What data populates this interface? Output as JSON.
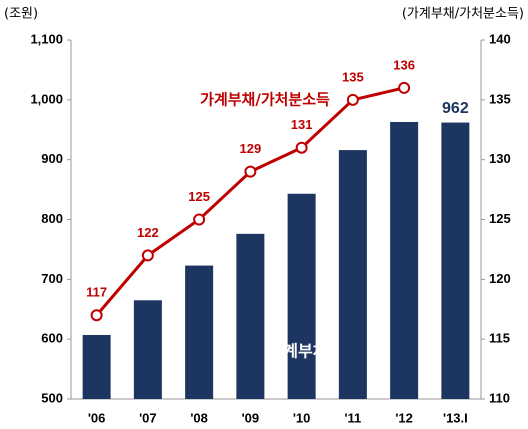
{
  "chart_data": {
    "type": "bar_line",
    "y_label": "(조원)",
    "y2_label": "(가계부채/가처분소득)",
    "categories": [
      "'06",
      "'07",
      "'08",
      "'09",
      "'10",
      "'11",
      "'12",
      "'13.I"
    ],
    "series": [
      {
        "name": "가계부채",
        "type": "bar",
        "color": "#1c3661",
        "values": [
          607,
          665,
          723,
          776,
          843,
          916,
          963,
          962
        ],
        "value_labels": [
          null,
          null,
          null,
          null,
          null,
          null,
          null,
          "962"
        ]
      },
      {
        "name": "가계부채/가처분소득",
        "type": "line",
        "axis": "y2",
        "color": "#c00000",
        "values": [
          117,
          122,
          125,
          129,
          131,
          135,
          136,
          null
        ]
      }
    ],
    "ylim": [
      500,
      1100
    ],
    "yticks": [
      500,
      600,
      700,
      800,
      900,
      {
        "value": 1000,
        "label": "1,000"
      },
      {
        "value": 1100,
        "label": "1,100"
      }
    ],
    "y2lim": [
      110,
      140
    ],
    "y2ticks": [
      110,
      115,
      120,
      125,
      130,
      135,
      140
    ],
    "grid": false
  }
}
